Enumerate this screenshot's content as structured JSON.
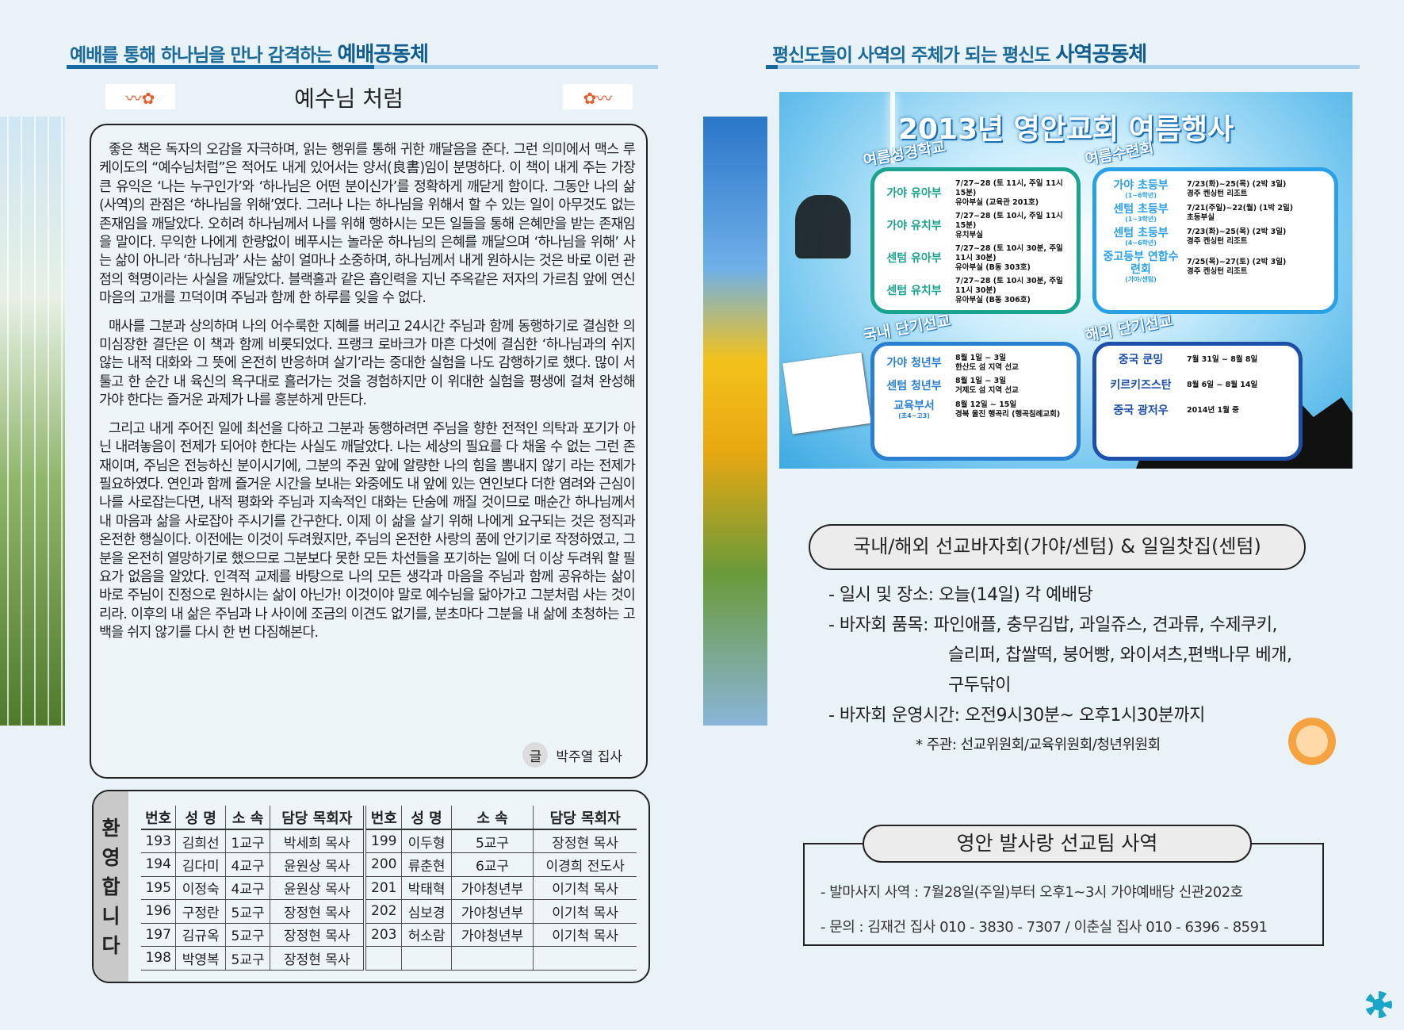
{
  "left_header": {
    "prefix": "예배를 통해 하나님을 만나 감격하는 ",
    "emphasis": "예배공동체"
  },
  "right_header": {
    "prefix": "평신도들이 사역의 주체가 되는 평신도 ",
    "emphasis": "사역공동체"
  },
  "article": {
    "title": "예수님 처럼",
    "paragraphs": [
      "좋은 책은 독자의 오감을 자극하며, 읽는 행위를 통해 귀한 깨달음을 준다. 그런 의미에서 맥스 루케이도의 “예수님처럼”은 적어도 내게 있어서는 양서(良書)임이 분명하다. 이 책이 내게 주는 가장 큰 유익은 ‘나는 누구인가’와 ‘하나님은 어떤 분이신가’를 정확하게 깨닫게 함이다. 그동안 나의 삶(사역)의 관점은 ‘하나님을 위해’였다. 그러나 나는 하나님을 위해서 할 수 있는 일이 아무것도 없는 존재임을 깨달았다. 오히려 하나님께서 나를 위해 행하시는 모든 일들을 통해 은혜만을 받는 존재임을 말이다. 무익한 나에게 한량없이 베푸시는 놀라운 하나님의 은혜를 깨달으며 ‘하나님을 위해’ 사는 삶이 아니라 ‘하나님과’ 사는 삶이 얼마나 소중하며, 하나님께서 내게 원하시는 것은 바로 이런 관점의 혁명이라는 사실을 깨달았다. 블랙홀과 같은 흡인력을 지닌 주옥같은 저자의 가르침 앞에 연신 마음의 고개를 끄덕이며 주님과 함께 한 하루를 잊을 수 없다.",
      "매사를 그분과 상의하며 나의 어수룩한 지혜를 버리고 24시간 주님과 함께 동행하기로 결심한 의미심장한 결단은 이 책과 함께 비롯되었다. 프랭크 로바크가 마흔 다섯에 결심한 ‘하나님과의 쉬지 않는 내적 대화와 그 뜻에 온전히 반응하며 살기’라는 중대한 실험을 나도 감행하기로 했다. 많이 서툴고 한 순간 내 육신의 욕구대로 흘러가는 것을 경험하지만 이 위대한 실험을 평생에 걸쳐 완성해 가야 한다는 즐거운 과제가 나를 흥분하게 만든다.",
      "그리고 내게 주어진 일에 최선을 다하고 그분과 동행하려면 주님을 향한 전적인 의탁과 포기가 아닌 내려놓음이 전제가 되어야 한다는 사실도 깨달았다. 나는 세상의 필요를 다 채울 수 없는 그런 존재이며, 주님은 전능하신 분이시기에, 그분의 주권 앞에 알량한 나의 힘을 뽐내지 않기 라는 전제가 필요하였다. 연인과 함께 즐거운 시간을 보내는 와중에도 내 앞에 있는 연인보다 더한 염려와 근심이 나를 사로잡는다면, 내적 평화와 주님과 지속적인 대화는 단숨에 깨질 것이므로 매순간 하나님께서 내 마음과 삶을 사로잡아 주시기를 간구한다. 이제 이 삶을 살기 위해 나에게 요구되는 것은 정직과 온전한 행실이다. 이전에는 이것이 두려웠지만, 주님의 온전한 사랑의 품에 안기기로 작정하였고, 그분을 온전히 열망하기로 했으므로 그분보다 못한 모든 차선들을 포기하는 일에 더 이상 두려워 할 필요가 없음을 알았다. 인격적 교제를 바탕으로 나의 모든 생각과 마음을 주님과 함께 공유하는 삶이 바로 주님이 진정으로 원하시는 삶이 아닌가! 이것이야 말로 예수님을 닮아가고 그분처럼 사는 것이리라. 이후의 내 삶은 주님과 나 사이에 조금의 이견도 없기를, 분초마다 그분을 내 삶에 초청하는 고백을 쉬지 않기를 다시 한 번 다짐해본다."
    ],
    "byline_mark": "글",
    "byline": "박주열 집사"
  },
  "welcome": {
    "label": [
      "환",
      "영",
      "합",
      "니",
      "다"
    ],
    "headers": [
      "번호",
      "성 명",
      "소 속",
      "담당 목회자",
      "번호",
      "성 명",
      "소 속",
      "담당 목회자"
    ],
    "rows": [
      [
        "193",
        "김희선",
        "1교구",
        "박세희 목사",
        "199",
        "이두형",
        "5교구",
        "장정현 목사"
      ],
      [
        "194",
        "김다미",
        "4교구",
        "윤원상 목사",
        "200",
        "류춘현",
        "6교구",
        "이경희 전도사"
      ],
      [
        "195",
        "이정숙",
        "4교구",
        "윤원상 목사",
        "201",
        "박태혁",
        "가야청년부",
        "이기척 목사"
      ],
      [
        "196",
        "구정란",
        "5교구",
        "장정현 목사",
        "202",
        "심보경",
        "가야청년부",
        "이기척 목사"
      ],
      [
        "197",
        "김규옥",
        "5교구",
        "장정현 목사",
        "203",
        "허소람",
        "가야청년부",
        "이기척 목사"
      ],
      [
        "198",
        "박영복",
        "5교구",
        "장정현 목사",
        "",
        "",
        "",
        ""
      ]
    ]
  },
  "poster": {
    "title": "2013년 영안교회 여름행사",
    "bible_school": {
      "label": "여름성경학교",
      "color": "#1aa38f",
      "items": [
        {
          "k": "가야 유아부",
          "v1": "7/27~28 (토 11시, 주일 11시 15분)",
          "v2": "유아부실 (교육관 201호)"
        },
        {
          "k": "가야 유치부",
          "v1": "7/27~28 (토 10시, 주일 11시 15분)",
          "v2": "유치부실"
        },
        {
          "k": "센텀 유아부",
          "v1": "7/27~28 (토 10시 30분, 주일 11시 30분)",
          "v2": "유아부실 (B동 303호)"
        },
        {
          "k": "센텀 유치부",
          "v1": "7/27~28 (토 10시 30분, 주일 11시 30분)",
          "v2": "유아부실 (B동 306호)"
        }
      ]
    },
    "retreat": {
      "label": "여름수련회",
      "color": "#2aa0e6",
      "items": [
        {
          "k": "가야 초등부",
          "sub": "(1~6학년)",
          "v1": "7/23(화)~25(목) (2박 3일)",
          "v2": "경주 켄싱턴 리조트"
        },
        {
          "k": "센텀 초등부",
          "sub": "(1~3학년)",
          "v1": "7/21(주일)~22(월) (1박 2일)",
          "v2": "초등부실"
        },
        {
          "k": "센텀 초등부",
          "sub": "(4~6학년)",
          "v1": "7/23(화)~25(목) (2박 3일)",
          "v2": "경주 켄싱턴 리조트"
        },
        {
          "k": "중고등부 연합수련회",
          "sub": "(가야/센텀)",
          "v1": "7/25(목)~27(토) (2박 3일)",
          "v2": "경주 켄싱턴 리조트"
        }
      ]
    },
    "domestic": {
      "label": "국내 단기선교",
      "color": "#2b7fd0",
      "items": [
        {
          "k": "가야 청년부",
          "v1": "8월 1일 ~ 3일",
          "v2": "한산도 섬 지역 선교"
        },
        {
          "k": "센텀 청년부",
          "v1": "8월 1일 ~ 3일",
          "v2": "거제도 섬 지역 선교"
        },
        {
          "k": "교육부서",
          "sub": "(초4~고3)",
          "v1": "8월 12일 ~ 15일",
          "v2": "경북 울진 행곡리 (행곡침례교회)"
        }
      ]
    },
    "overseas": {
      "label": "해외 단기선교",
      "color": "#1d4fa8",
      "items": [
        {
          "k": "중국 쿤밍",
          "v1": "7월 31일 ~ 8월 8일"
        },
        {
          "k": "키르키즈스탄",
          "v1": "8월 6일 ~ 8월 14일"
        },
        {
          "k": "중국 광저우",
          "v1": "2014년 1월 중"
        }
      ]
    }
  },
  "bazaar": {
    "title": "국내/해외 선교바자회(가야/센텀) & 일일찻집(센텀)",
    "lines": [
      "- 일시 및 장소: 오늘(14일) 각 예배당",
      "- 바자회 품목: 파인애플, 충무김밥, 과일쥬스, 견과류, 수제쿠키,",
      "슬리퍼, 찹쌀떡, 붕어빵, 와이셔츠,편백나무 베개,",
      "구두닦이",
      "- 바자회 운영시간: 오전9시30분~ 오후1시30분까지",
      "* 주관: 선교위원회/교육위원회/청년위원회"
    ]
  },
  "mission": {
    "title": "영안 발사랑 선교팀 사역",
    "lines": [
      "- 발마사지 사역 : 7월28일(주일)부터 오후1~3시 가야예배당 신관202호",
      "- 문의 : 김재건 집사 010 - 3830 - 7307 / 이춘실 집사 010 - 6396 - 8591"
    ]
  },
  "colors": {
    "accent": "#1768a0",
    "accent_light": "#a9d0ef",
    "background": "#e9f2f7"
  }
}
